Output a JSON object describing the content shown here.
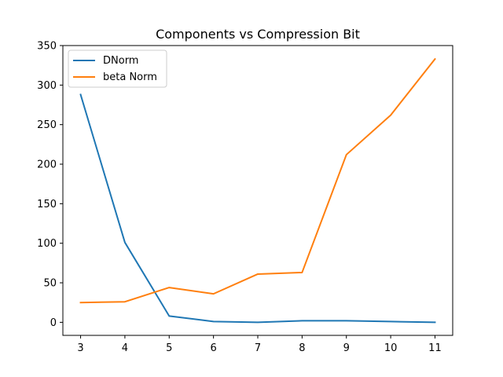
{
  "chart_data": {
    "type": "line",
    "title": "Components vs Compression Bit",
    "xlabel": "",
    "ylabel": "",
    "x": [
      3,
      4,
      5,
      6,
      7,
      8,
      9,
      10,
      11
    ],
    "xlim": [
      2.6,
      11.4
    ],
    "ylim": [
      -16.5,
      350
    ],
    "xticks": [
      "3",
      "4",
      "5",
      "6",
      "7",
      "8",
      "9",
      "10",
      "11"
    ],
    "yticks": [
      "0",
      "50",
      "100",
      "150",
      "200",
      "250",
      "300",
      "350"
    ],
    "grid": false,
    "legend_position": "top-left",
    "series": [
      {
        "name": "DNorm",
        "color": "#1f77b4",
        "values": [
          288,
          101,
          8,
          1,
          0,
          2,
          2,
          1,
          0
        ]
      },
      {
        "name": "beta Norm",
        "color": "#ff7f0e",
        "values": [
          25,
          26,
          44,
          36,
          61,
          63,
          212,
          262,
          333
        ]
      }
    ]
  }
}
